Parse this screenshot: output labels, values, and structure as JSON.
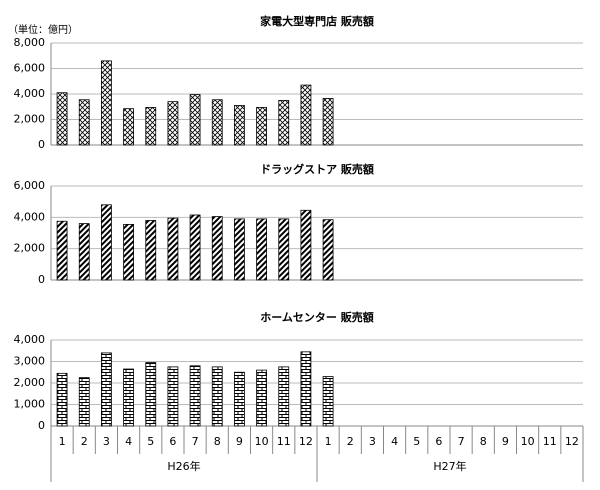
{
  "chart_data": [
    {
      "type": "bar",
      "title": "家電大型専門店 販売額",
      "unit_label": "（単位：億円）",
      "pattern": "crosshatch",
      "color": "#000000",
      "values": [
        4100,
        3550,
        6600,
        2850,
        2950,
        3400,
        3950,
        3550,
        3100,
        2950,
        3500,
        4700,
        3650,
        null,
        null,
        null,
        null,
        null,
        null,
        null,
        null,
        null,
        null,
        null
      ],
      "ylim": [
        0,
        8000
      ],
      "yticks": [
        0,
        {
          "value": 2000,
          "label": "2,000"
        },
        {
          "value": 4000,
          "label": "4,000"
        },
        {
          "value": 6000,
          "label": "6,000"
        },
        {
          "value": 8000,
          "label": "8,000"
        }
      ],
      "grid": true
    },
    {
      "type": "bar",
      "title": "ドラッグストア 販売額",
      "pattern": "diagonal",
      "color": "#000000",
      "values": [
        3750,
        3600,
        4800,
        3550,
        3800,
        3950,
        4150,
        4050,
        3900,
        3900,
        3900,
        4450,
        3850,
        null,
        null,
        null,
        null,
        null,
        null,
        null,
        null,
        null,
        null,
        null
      ],
      "ylim": [
        0,
        6000
      ],
      "yticks": [
        0,
        {
          "value": 2000,
          "label": "2,000"
        },
        {
          "value": 4000,
          "label": "4,000"
        },
        {
          "value": 6000,
          "label": "6,000"
        }
      ],
      "grid": true
    },
    {
      "type": "bar",
      "title": "ホームセンター 販売額",
      "pattern": "brick",
      "color": "#000000",
      "categories": [
        "1",
        "2",
        "3",
        "4",
        "5",
        "6",
        "7",
        "8",
        "9",
        "10",
        "11",
        "12",
        "1",
        "2",
        "3",
        "4",
        "5",
        "6",
        "7",
        "8",
        "9",
        "10",
        "11",
        "12"
      ],
      "groups": [
        "H26年",
        "H27年"
      ],
      "values": [
        2450,
        2250,
        3400,
        2650,
        2950,
        2750,
        2800,
        2750,
        2500,
        2600,
        2750,
        3450,
        2300,
        null,
        null,
        null,
        null,
        null,
        null,
        null,
        null,
        null,
        null,
        null
      ],
      "ylim": [
        0,
        4000
      ],
      "yticks": [
        0,
        {
          "value": 1000,
          "label": "1,000"
        },
        {
          "value": 2000,
          "label": "2,000"
        },
        {
          "value": 3000,
          "label": "3,000"
        },
        {
          "value": 4000,
          "label": "4,000"
        }
      ],
      "grid": true
    }
  ]
}
